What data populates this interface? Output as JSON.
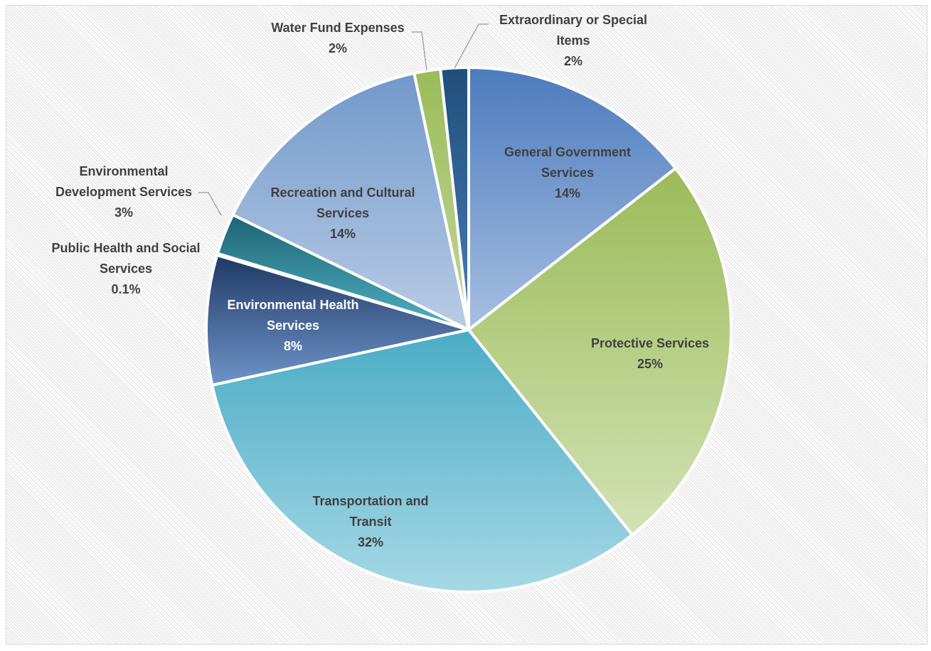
{
  "chart_data": {
    "type": "pie",
    "title": "",
    "start_angle_deg": 0,
    "direction": "clockwise",
    "slices": [
      {
        "name_lines": [
          "General Government",
          "Services"
        ],
        "value": 14.3,
        "percent_label": "14%",
        "label_placement": "inside",
        "label_color": "#404040",
        "color_top": "#4c7bbd",
        "color_bottom": "#a7bfe2"
      },
      {
        "name_lines": [
          "Protective Services"
        ],
        "value": 24.6,
        "percent_label": "25%",
        "label_placement": "inside",
        "label_color": "#404040",
        "color_top": "#9bbb59",
        "color_bottom": "#d3e2b4"
      },
      {
        "name_lines": [
          "Transportation and",
          "Transit"
        ],
        "value": 32.0,
        "percent_label": "32%",
        "label_placement": "inside",
        "label_color": "#404040",
        "color_top": "#4bacc6",
        "color_bottom": "#a6d8e5"
      },
      {
        "name_lines": [
          "Environmental Health",
          "Services"
        ],
        "value": 7.9,
        "percent_label": "8%",
        "label_placement": "inside",
        "label_color": "#ffffff",
        "color_top": "#1f3864",
        "color_bottom": "#6f94c9"
      },
      {
        "name_lines": [
          "Public Health and Social",
          "Services"
        ],
        "value": 0.1,
        "percent_label": "0.1%",
        "label_placement": "outside",
        "label_color": "#404040",
        "color_top": "#2e75b6",
        "color_bottom": "#9dc3e6"
      },
      {
        "name_lines": [
          "Environmental",
          "Development Services"
        ],
        "value": 2.5,
        "percent_label": "3%",
        "label_placement": "outside",
        "label_color": "#404040",
        "color_top": "#1e6473",
        "color_bottom": "#4fb1c3"
      },
      {
        "name_lines": [
          "Recreation and Cultural",
          "Services"
        ],
        "value": 14.3,
        "percent_label": "14%",
        "label_placement": "inside",
        "label_color": "#404040",
        "color_top": "#7299cb",
        "color_bottom": "#b9cce5"
      },
      {
        "name_lines": [
          "Water Fund Expenses"
        ],
        "value": 1.6,
        "percent_label": "2%",
        "label_placement": "outside",
        "label_color": "#404040",
        "color_top": "#9bbb59",
        "color_bottom": "#c4d79b"
      },
      {
        "name_lines": [
          "Extraordinary or Special",
          "Items"
        ],
        "value": 1.7,
        "percent_label": "2%",
        "label_placement": "outside",
        "label_color": "#404040",
        "color_top": "#1f4e79",
        "color_bottom": "#4a7ebb"
      }
    ]
  }
}
